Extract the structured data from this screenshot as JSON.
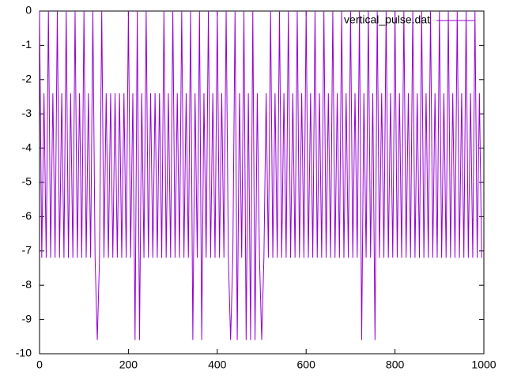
{
  "chart_data": {
    "type": "line",
    "x": [
      0,
      5,
      10,
      15,
      20,
      25,
      30,
      35,
      40,
      45,
      50,
      55,
      60,
      65,
      70,
      75,
      80,
      85,
      90,
      95,
      100,
      105,
      110,
      115,
      120,
      125,
      130,
      135,
      140,
      145,
      150,
      155,
      160,
      165,
      170,
      175,
      180,
      185,
      190,
      195,
      200,
      205,
      210,
      215,
      220,
      225,
      230,
      235,
      240,
      245,
      250,
      255,
      260,
      265,
      270,
      275,
      280,
      285,
      290,
      295,
      300,
      305,
      310,
      315,
      320,
      325,
      330,
      335,
      340,
      345,
      350,
      355,
      360,
      365,
      370,
      375,
      380,
      385,
      390,
      395,
      400,
      405,
      410,
      415,
      420,
      425,
      430,
      435,
      440,
      445,
      450,
      455,
      460,
      465,
      470,
      475,
      480,
      485,
      490,
      495,
      500,
      505,
      510,
      515,
      520,
      525,
      530,
      535,
      540,
      545,
      550,
      555,
      560,
      565,
      570,
      575,
      580,
      585,
      590,
      595,
      600,
      605,
      610,
      615,
      620,
      625,
      630,
      635,
      640,
      645,
      650,
      655,
      660,
      665,
      670,
      675,
      680,
      685,
      690,
      695,
      700,
      705,
      710,
      715,
      720,
      725,
      730,
      735,
      740,
      745,
      750,
      755,
      760,
      765,
      770,
      775,
      780,
      785,
      790,
      795,
      800,
      805,
      810,
      815,
      820,
      825,
      830,
      835,
      840,
      845,
      850,
      855,
      860,
      865,
      870,
      875,
      880,
      885,
      890,
      895,
      900,
      905,
      910,
      915,
      920,
      925,
      930,
      935,
      940,
      945,
      950,
      955,
      960,
      965,
      970,
      975,
      980,
      985,
      990,
      995
    ],
    "series": [
      {
        "name": "vertical_pulse.dat",
        "color": "#9400d3",
        "values": [
          0,
          -7.2,
          -2.4,
          -7.2,
          0,
          -7.2,
          -2.4,
          -7.2,
          0,
          -7.2,
          -2.4,
          -7.2,
          0,
          -7.2,
          -2.4,
          -7.2,
          0,
          -7.2,
          -2.4,
          -7.2,
          0,
          -7.2,
          -2.4,
          -7.2,
          0,
          -7.2,
          -9.6,
          -7.2,
          0,
          -7.2,
          -2.4,
          -7.2,
          -2.4,
          -7.2,
          -2.4,
          -7.2,
          -2.4,
          -7.2,
          -2.4,
          -7.2,
          0,
          -7.2,
          -2.4,
          -9.6,
          0,
          -9.6,
          -2.4,
          -7.2,
          0,
          -7.2,
          -2.4,
          -7.2,
          -2.4,
          -7.2,
          -2.4,
          -7.2,
          0,
          -7.2,
          -2.4,
          -7.2,
          0,
          -7.2,
          -2.4,
          -7.2,
          0,
          -7.2,
          -2.4,
          -7.2,
          0,
          -9.6,
          -2.4,
          -7.2,
          0,
          -9.6,
          -2.4,
          -7.2,
          0,
          -7.2,
          -2.4,
          -7.2,
          0,
          -7.2,
          -2.4,
          -7.2,
          0,
          -7.2,
          -9.6,
          -7.2,
          0,
          -9.6,
          -2.4,
          -7.2,
          0,
          -9.6,
          -2.4,
          -9.6,
          0,
          -9.6,
          -2.4,
          -7.2,
          -9.6,
          -7.2,
          -2.4,
          -7.2,
          0,
          -7.2,
          -2.4,
          -7.2,
          0,
          -7.2,
          -2.4,
          -7.2,
          0,
          -7.2,
          -2.4,
          -7.2,
          0,
          -7.2,
          -2.4,
          -7.2,
          0,
          -7.2,
          -2.4,
          -7.2,
          0,
          -7.2,
          -2.4,
          -7.2,
          0,
          -7.2,
          -2.4,
          -7.2,
          0,
          -7.2,
          -2.4,
          -7.2,
          0,
          -7.2,
          -2.4,
          -7.2,
          0,
          -7.2,
          -2.4,
          -7.2,
          0,
          -9.6,
          -2.4,
          -7.2,
          0,
          -7.2,
          -2.4,
          -9.6,
          0,
          -7.2,
          -2.4,
          -7.2,
          0,
          -7.2,
          -2.4,
          -7.2,
          0,
          -7.2,
          -2.4,
          -7.2,
          0,
          -7.2,
          -2.4,
          -7.2,
          0,
          -7.2,
          -2.4,
          -7.2,
          0,
          -7.2,
          -2.4,
          -7.2,
          0,
          -7.2,
          -2.4,
          -7.2,
          0,
          -7.2,
          -2.4,
          -7.2,
          0,
          -7.2,
          -2.4,
          -7.2,
          0,
          -7.2,
          -2.4,
          -7.2,
          0,
          -7.2,
          -2.4,
          -7.2,
          0,
          -7.2,
          -2.4,
          -7.2
        ]
      }
    ],
    "xlim": [
      0,
      1000
    ],
    "xticks": [
      0,
      200,
      400,
      600,
      800,
      1000
    ],
    "ylim": [
      -10,
      0
    ],
    "yticks": [
      0,
      -1,
      -2,
      -3,
      -4,
      -5,
      -6,
      -7,
      -8,
      -9,
      -10
    ],
    "legend": "top-right"
  }
}
